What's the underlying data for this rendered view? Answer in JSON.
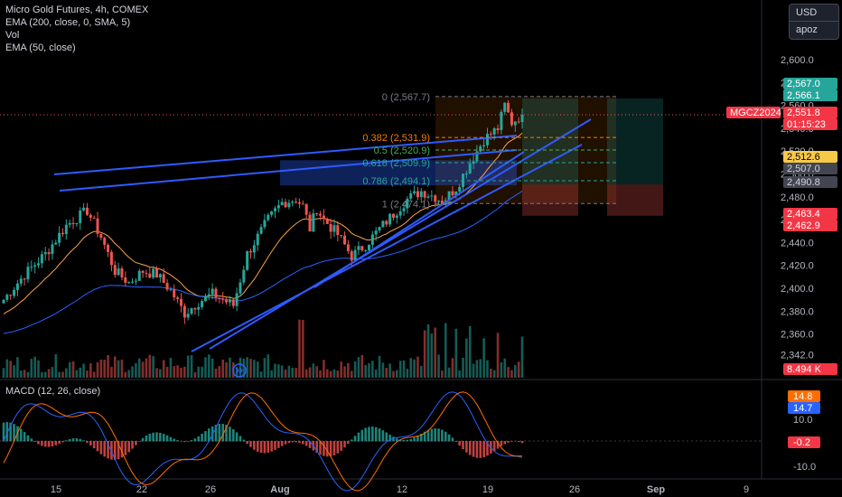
{
  "legend": {
    "title": "Micro Gold Futures, 4h, COMEX",
    "ema200": "EMA (200, close, 0, SMA, 5)",
    "vol": "Vol",
    "ema50": "EMA (50, close)",
    "macd": "MACD (12, 26, close)"
  },
  "units": {
    "currency": "USD",
    "user": "apoz"
  },
  "colors": {
    "up": "#26a69a",
    "down": "#ef5350",
    "ema50": "#f7a448",
    "ema200": "#2962ff",
    "trend": "#2f5bff",
    "macd": "#2962ff",
    "signal": "#ff6d00"
  },
  "chart_data": {
    "type": "candlestick",
    "price_axis": {
      "ticks": [
        "2,600.0",
        "2,580.0",
        "2,560.0",
        "2,540.0",
        "2,520.0",
        "2,500.0",
        "2,480.0",
        "2,460.0",
        "2,440.0",
        "2,420.0",
        "2,400.0",
        "2,380.0",
        "2,360.0",
        "2,342.0"
      ],
      "range": [
        2335,
        2618
      ]
    },
    "time_axis": {
      "labels": [
        "15",
        "22",
        "26",
        "Aug",
        "12",
        "19",
        "26",
        "Sep",
        "9"
      ]
    },
    "price_labels": [
      {
        "text": "2,567.0",
        "kind": "green"
      },
      {
        "text": "2,566.1",
        "kind": "green"
      },
      {
        "text": "MGCZ2024",
        "kind": "red"
      },
      {
        "text": "2,551.8",
        "kind": "red"
      },
      {
        "text": "01:15:23",
        "kind": "red"
      },
      {
        "text": "2,512.6",
        "kind": "yellow"
      },
      {
        "text": "2,507.0",
        "kind": "gray"
      },
      {
        "text": "2,490.8",
        "kind": "gray"
      },
      {
        "text": "2,463.4",
        "kind": "red"
      },
      {
        "text": "2,462.9",
        "kind": "red"
      },
      {
        "text": "8.494 K",
        "kind": "red"
      }
    ],
    "fibonacci": [
      {
        "label": "0 (2,567.7)",
        "price": 2567.7,
        "color": "#787b86"
      },
      {
        "label": "0.382 (2,531.9)",
        "price": 2531.9,
        "color": "#f57c00"
      },
      {
        "label": "0.5 (2,520.9)",
        "price": 2520.9,
        "color": "#4caf50"
      },
      {
        "label": "0.618 (2,509.9)",
        "price": 2509.9,
        "color": "#26a69a"
      },
      {
        "label": "0.786 (2,494.1)",
        "price": 2494.1,
        "color": "#26a69a"
      },
      {
        "label": "1 (2,474.1)",
        "price": 2474.1,
        "color": "#787b86"
      }
    ],
    "macd_axis": {
      "ticks": [
        "10.0",
        "-10.0"
      ],
      "labels": [
        {
          "text": "14.8",
          "kind": "orange"
        },
        {
          "text": "14.7",
          "kind": "blue"
        },
        {
          "text": "-0.2",
          "kind": "red"
        }
      ]
    },
    "last_price": 2551.8
  }
}
